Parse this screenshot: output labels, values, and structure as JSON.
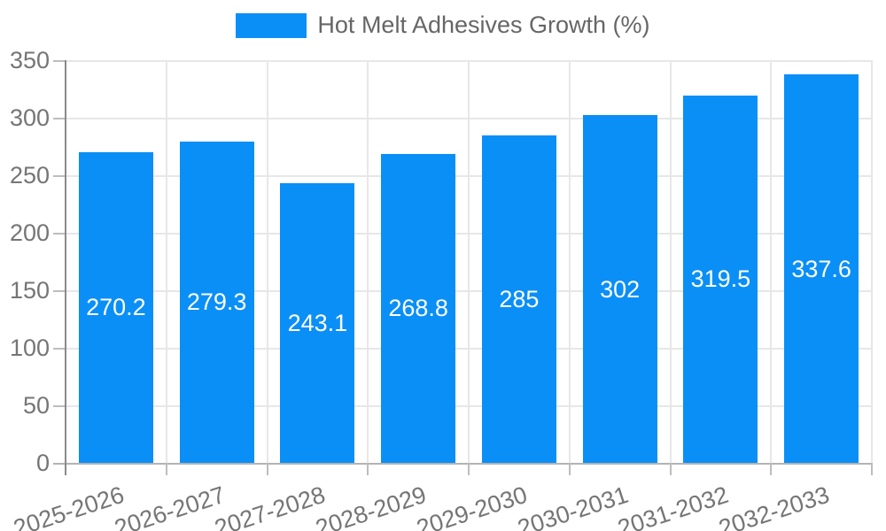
{
  "legend": {
    "label": "Hot Melt Adhesives Growth (%)"
  },
  "chart_data": {
    "type": "bar",
    "title": "",
    "xlabel": "",
    "ylabel": "",
    "categories": [
      "2025-2026",
      "2026-2027",
      "2027-2028",
      "2028-2029",
      "2029-2030",
      "2030-2031",
      "2031-2032",
      "2032-2033"
    ],
    "series": [
      {
        "name": "Hot Melt Adhesives Growth (%)",
        "values": [
          270.2,
          279.3,
          243.1,
          268.8,
          285,
          302,
          319.5,
          337.6
        ]
      }
    ],
    "value_labels": [
      "270.2",
      "279.3",
      "243.1",
      "268.8",
      "285",
      "302",
      "319.5",
      "337.6"
    ],
    "ylim": [
      0,
      350
    ],
    "yticks": [
      0,
      50,
      100,
      150,
      200,
      250,
      300,
      350
    ],
    "grid": true,
    "legend_position": "top",
    "colors": {
      "bar": "#0a8ff7",
      "value_label": "#ffffff",
      "axis": "#8a8a8a",
      "grid": "#e7e7e7",
      "zero_line": "#b3b3b3",
      "tick": "#bdbdbd",
      "label_text": "#757575",
      "legend_text": "#666666"
    }
  }
}
